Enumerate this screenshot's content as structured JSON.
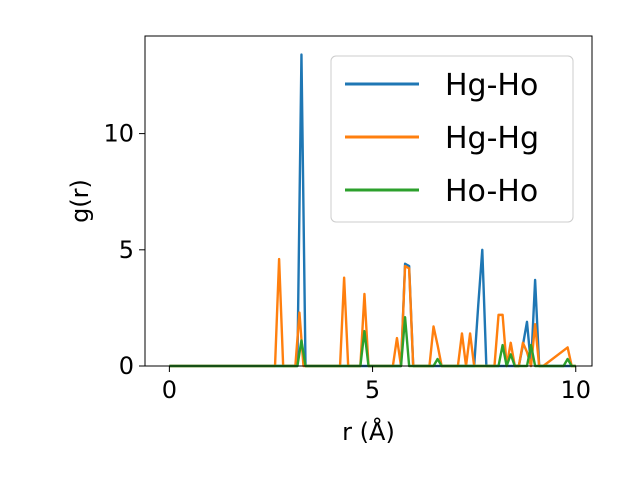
{
  "chart_data": {
    "type": "line",
    "title": "",
    "xlabel": "r (Å)",
    "ylabel": "g(r)",
    "xlim": [
      -0.6,
      10.4
    ],
    "ylim": [
      0,
      14.2
    ],
    "xticks": [
      0,
      5,
      10
    ],
    "yticks": [
      0,
      5,
      10
    ],
    "xtick_labels": [
      "0",
      "5",
      "10"
    ],
    "ytick_labels": [
      "0",
      "5",
      "10"
    ],
    "grid": false,
    "legend_position": "top-right",
    "series": [
      {
        "name": "Hg-Ho",
        "color": "#1f77b4",
        "x": [
          0,
          3.15,
          3.25,
          3.35,
          3.45,
          5.7,
          5.8,
          5.9,
          6.0,
          7.5,
          7.6,
          7.7,
          7.8,
          8.6,
          8.7,
          8.8,
          8.9,
          9.0,
          9.1,
          9.2,
          9.9
        ],
        "y": [
          0,
          0,
          13.4,
          0,
          0,
          0,
          4.4,
          4.3,
          0,
          0,
          2.6,
          5.0,
          0,
          0,
          0.9,
          1.9,
          0,
          3.7,
          0,
          0,
          0
        ]
      },
      {
        "name": "Hg-Hg",
        "color": "#ff7f0e",
        "x": [
          0,
          2.6,
          2.7,
          2.8,
          3.1,
          3.2,
          3.3,
          4.2,
          4.3,
          4.4,
          4.7,
          4.8,
          4.9,
          5.5,
          5.6,
          5.7,
          5.8,
          5.9,
          6.0,
          6.4,
          6.5,
          6.6,
          6.7,
          7.1,
          7.2,
          7.3,
          7.4,
          7.5,
          7.6,
          8.0,
          8.1,
          8.2,
          8.3,
          8.4,
          8.5,
          8.6,
          8.7,
          8.8,
          8.9,
          9.0,
          9.1,
          9.2,
          9.8,
          9.9,
          10.0
        ],
        "y": [
          0,
          0,
          4.6,
          0,
          0,
          2.3,
          0,
          0,
          3.8,
          0,
          0,
          3.1,
          0,
          0,
          1.2,
          0,
          4.3,
          4.2,
          0,
          0,
          1.7,
          0.9,
          0,
          0,
          1.4,
          0,
          1.4,
          0,
          0,
          0,
          2.2,
          2.2,
          0,
          1.0,
          0,
          0,
          1.0,
          0.6,
          0,
          1.8,
          0,
          0,
          0.8,
          0,
          0
        ]
      },
      {
        "name": "Ho-Ho",
        "color": "#2ca02c",
        "x": [
          0,
          3.15,
          3.25,
          3.35,
          4.7,
          4.8,
          4.9,
          5.7,
          5.8,
          5.9,
          6.5,
          6.6,
          6.7,
          8.1,
          8.2,
          8.3,
          8.4,
          8.5,
          8.8,
          8.9,
          9.0,
          9.7,
          9.8,
          9.9,
          10.0
        ],
        "y": [
          0,
          0,
          1.1,
          0,
          0,
          1.5,
          0,
          0,
          2.1,
          0,
          0,
          0.3,
          0,
          0,
          0.9,
          0,
          0.5,
          0,
          0,
          0.9,
          0,
          0,
          0.3,
          0,
          0
        ]
      }
    ]
  }
}
